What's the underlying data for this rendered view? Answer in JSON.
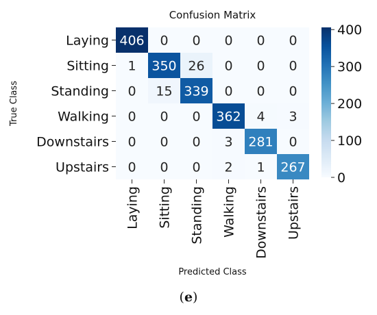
{
  "chart_data": {
    "type": "heatmap",
    "title": "Confusion Matrix",
    "xlabel": "Predicted Class",
    "ylabel": "True Class",
    "x_categories": [
      "Laying",
      "Sitting",
      "Standing",
      "Walking",
      "Downstairs",
      "Upstairs"
    ],
    "y_categories": [
      "Laying",
      "Sitting",
      "Standing",
      "Walking",
      "Downstairs",
      "Upstairs"
    ],
    "values": [
      [
        406,
        0,
        0,
        0,
        0,
        0
      ],
      [
        1,
        350,
        26,
        0,
        0,
        0
      ],
      [
        0,
        15,
        339,
        0,
        0,
        0
      ],
      [
        0,
        0,
        0,
        362,
        4,
        3
      ],
      [
        0,
        0,
        0,
        3,
        281,
        0
      ],
      [
        0,
        0,
        0,
        2,
        1,
        267
      ]
    ],
    "colorbar": {
      "range": [
        0,
        406
      ],
      "ticks": [
        0,
        100,
        200,
        300,
        400
      ],
      "colormap": "Blues"
    }
  },
  "caption": {
    "prefix": "(",
    "letter": "e",
    "suffix": ")"
  }
}
